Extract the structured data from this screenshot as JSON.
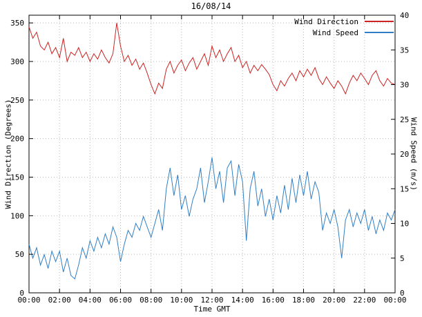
{
  "title": "16/08/14",
  "xlabel": "Time GMT",
  "ylabel_left": "Wind Direction (Degrees)",
  "ylabel_right": "Wind Speed (m/s)",
  "colors": {
    "wind_direction": "#cc2222",
    "wind_speed": "#2f7ec4",
    "grid": "#b8b8b8",
    "axis": "#000000"
  },
  "chart_data": {
    "type": "line",
    "title": "16/08/14",
    "xlabel": "Time GMT",
    "ylabel_left": "Wind Direction (Degrees)",
    "ylabel_right": "Wind Speed (m/s)",
    "grid": true,
    "legend_position": "top-right",
    "x_unit": "minutes",
    "x_range": [
      0,
      1440
    ],
    "x_start": 0,
    "x_step": 15,
    "x_tick_minutes": [
      0,
      120,
      240,
      360,
      480,
      600,
      720,
      840,
      960,
      1080,
      1200,
      1320,
      1440
    ],
    "x_tick_labels": [
      "00:00",
      "02:00",
      "04:00",
      "06:00",
      "08:00",
      "10:00",
      "12:00",
      "14:00",
      "16:00",
      "18:00",
      "20:00",
      "22:00",
      "00:00"
    ],
    "ylim_left": [
      0,
      360
    ],
    "y_ticks_left": [
      0,
      50,
      100,
      150,
      200,
      250,
      300,
      350
    ],
    "ylim_right": [
      0,
      40
    ],
    "y_ticks_right": [
      0,
      5,
      10,
      15,
      20,
      25,
      30,
      35,
      40
    ],
    "series": [
      {
        "name": "Wind Direction",
        "axis": "left",
        "units": "degrees",
        "color": "#cc2222",
        "values": [
          345,
          330,
          338,
          320,
          315,
          325,
          310,
          318,
          305,
          330,
          300,
          312,
          308,
          318,
          305,
          312,
          300,
          310,
          303,
          315,
          305,
          298,
          310,
          350,
          320,
          300,
          308,
          295,
          303,
          290,
          298,
          285,
          270,
          258,
          272,
          265,
          290,
          300,
          285,
          295,
          302,
          288,
          298,
          305,
          290,
          300,
          310,
          295,
          320,
          305,
          315,
          300,
          310,
          318,
          300,
          308,
          292,
          300,
          285,
          295,
          288,
          296,
          290,
          283,
          270,
          262,
          275,
          268,
          278,
          285,
          275,
          288,
          280,
          290,
          282,
          292,
          278,
          270,
          280,
          272,
          265,
          275,
          268,
          258,
          272,
          282,
          275,
          285,
          278,
          270,
          282,
          288,
          275,
          268,
          278,
          272,
          270
        ]
      },
      {
        "name": "Wind Speed",
        "axis": "right",
        "units": "m/s",
        "color": "#2f7ec4",
        "values": [
          7,
          5,
          6.5,
          4,
          5.5,
          3.5,
          6,
          4.5,
          6,
          3,
          5,
          2.5,
          2,
          4,
          6.5,
          5,
          7.5,
          6,
          8,
          6.5,
          8.5,
          7,
          9.5,
          8,
          4.5,
          7,
          9,
          8,
          10,
          9,
          11,
          9.5,
          8,
          10,
          12,
          9,
          15,
          18,
          14,
          17,
          12,
          14,
          11,
          13.5,
          15,
          18,
          13,
          16,
          19.5,
          15,
          17.5,
          13,
          18,
          19,
          14,
          18.5,
          16,
          7.5,
          15,
          17.5,
          12.5,
          15,
          11,
          13.5,
          10.5,
          14,
          11.5,
          15.5,
          12,
          16.5,
          13,
          17,
          14,
          17.5,
          13.5,
          16,
          14.5,
          9,
          11.5,
          10,
          12,
          9.5,
          5,
          10.5,
          12,
          9.5,
          11.5,
          10,
          12,
          9,
          11,
          8.5,
          10.5,
          9,
          11.5,
          10.5,
          12
        ]
      }
    ]
  }
}
